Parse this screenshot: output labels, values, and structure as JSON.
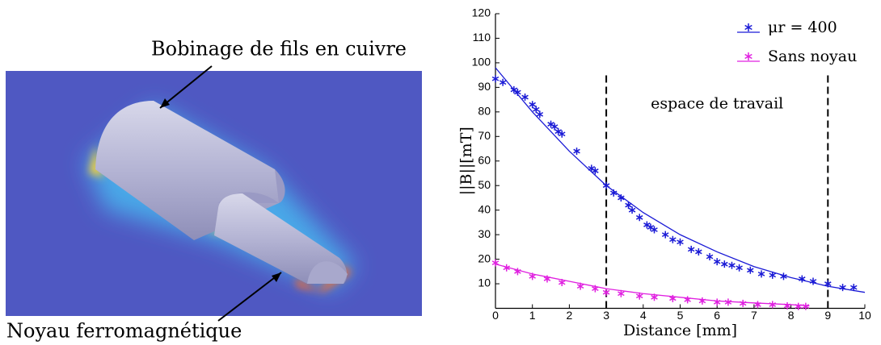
{
  "figure": {
    "labels": [
      "Bobinage de fils en cuivre",
      "Noyau ferromagnétique"
    ]
  },
  "chart_data": {
    "type": "scatter",
    "xlabel": "Distance [mm]",
    "ylabel": "||B||[mT]",
    "annotation": "espace de travail",
    "vlines": [
      3,
      9
    ],
    "xlim": [
      0,
      10
    ],
    "ylim": [
      0,
      120
    ],
    "xticks": [
      0,
      1,
      2,
      3,
      4,
      5,
      6,
      7,
      8,
      9,
      10
    ],
    "yticks": [
      10,
      20,
      30,
      40,
      50,
      60,
      70,
      80,
      90,
      100,
      110,
      120
    ],
    "legend": "upper right",
    "series": [
      {
        "name": "μr = 400",
        "color": "#1a1ad6",
        "x": [
          0,
          0.2,
          0.5,
          0.6,
          0.8,
          1,
          1.1,
          1.2,
          1.5,
          1.6,
          1.7,
          1.8,
          2.2,
          2.6,
          2.7,
          3.0,
          3.2,
          3.4,
          3.6,
          3.7,
          3.9,
          4.1,
          4.2,
          4.3,
          4.6,
          4.8,
          5.0,
          5.3,
          5.5,
          5.8,
          6.0,
          6.2,
          6.4,
          6.6,
          6.9,
          7.2,
          7.5,
          7.8,
          8.3,
          8.6,
          9.0,
          9.4,
          9.7
        ],
        "values": [
          93.5,
          92,
          89,
          88,
          86,
          83,
          81,
          79,
          75,
          74,
          72,
          71,
          64,
          57,
          56,
          50,
          47,
          45,
          42,
          40,
          37,
          34,
          33,
          32,
          30,
          28,
          27,
          24,
          23,
          21,
          19,
          18,
          17.5,
          16.5,
          15.5,
          14,
          13.5,
          13,
          12,
          11,
          10,
          8.5,
          8.5
        ],
        "curve": {
          "x": [
            0,
            1,
            2,
            3,
            4,
            5,
            6,
            7,
            8,
            9,
            10
          ],
          "values": [
            98,
            80,
            64,
            50,
            39,
            30,
            23,
            17,
            12.5,
            9,
            6.5
          ]
        }
      },
      {
        "name": "Sans noyau",
        "color": "#e020e0",
        "x": [
          0,
          0.3,
          0.6,
          1,
          1.4,
          1.8,
          2.3,
          2.7,
          3.0,
          3.4,
          3.9,
          4.3,
          4.8,
          5.2,
          5.6,
          6.0,
          6.3,
          6.7,
          7.1,
          7.5,
          7.9,
          8.2,
          8.4
        ],
        "values": [
          18.5,
          16.5,
          15,
          13,
          12,
          10.5,
          9,
          8,
          6.5,
          6,
          5,
          4.5,
          4,
          3.5,
          3,
          2.5,
          2.5,
          2,
          1.5,
          1.5,
          1,
          0.8,
          0.8
        ],
        "curve": {
          "x": [
            0,
            0.5,
            1,
            1.5,
            2,
            2.5,
            3,
            3.5,
            4,
            5,
            6,
            7,
            8,
            8.5
          ],
          "values": [
            18,
            16,
            14,
            12.5,
            11,
            9.5,
            8,
            7,
            6,
            4.5,
            3,
            2.2,
            1.5,
            1
          ]
        }
      }
    ]
  }
}
